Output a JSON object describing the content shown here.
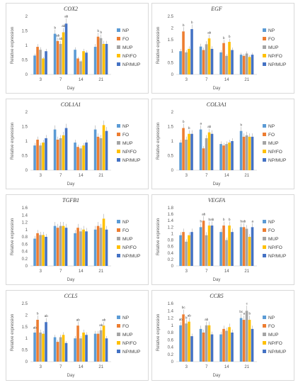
{
  "legend_labels": [
    "NP",
    "FO",
    "MUP",
    "NP/FO",
    "NP/MUP"
  ],
  "series_colors": [
    "#5b9bd5",
    "#ed7d31",
    "#a5a5a5",
    "#ffc000",
    "#4472c4"
  ],
  "chart_data": [
    {
      "type": "bar",
      "title": "COX2",
      "xlabel": "Day",
      "ylabel": "Relative expression",
      "categories": [
        "3",
        "7",
        "14",
        "21"
      ],
      "ylim": [
        0,
        2
      ],
      "yticks": [
        "0",
        "0.5",
        "1",
        "1.5",
        "2"
      ],
      "grid": false,
      "series": [
        {
          "name": "NP",
          "values": [
            0.65,
            1.4,
            0.85,
            0.95
          ]
        },
        {
          "name": "FO",
          "values": [
            0.95,
            1.15,
            0.55,
            1.3
          ]
        },
        {
          "name": "MUP",
          "values": [
            0.85,
            1.05,
            0.45,
            1.25
          ]
        },
        {
          "name": "NP/FO",
          "values": [
            0.55,
            1.45,
            0.8,
            1.05
          ]
        },
        {
          "name": "NP/MUP",
          "values": [
            0.8,
            1.75,
            0.75,
            1.05
          ]
        }
      ],
      "annotations": [
        "ab",
        "ab",
        "b",
        "b",
        "b",
        "ab",
        "ab"
      ]
    },
    {
      "type": "bar",
      "title": "EGF",
      "xlabel": "Day",
      "ylabel": "Relative expression",
      "categories": [
        "3",
        "7",
        "14",
        "21"
      ],
      "ylim": [
        0,
        2.5
      ],
      "yticks": [
        "0",
        "0.5",
        "1",
        "1.5",
        "2",
        "2.5"
      ],
      "grid": false,
      "series": [
        {
          "name": "NP",
          "values": [
            1.0,
            1.2,
            0.95,
            0.85
          ]
        },
        {
          "name": "FO",
          "values": [
            1.85,
            1.05,
            1.35,
            0.8
          ]
        },
        {
          "name": "MUP",
          "values": [
            0.95,
            1.3,
            0.8,
            0.9
          ]
        },
        {
          "name": "NP/FO",
          "values": [
            1.1,
            1.55,
            1.4,
            0.75
          ]
        },
        {
          "name": "NP/MUP",
          "values": [
            1.95,
            1.1,
            1.05,
            0.85
          ]
        }
      ],
      "annotations": [
        "b",
        "b",
        "ab",
        "b",
        "b"
      ]
    },
    {
      "type": "bar",
      "title": "COL1A1",
      "xlabel": "Day",
      "ylabel": "Relative expression",
      "categories": [
        "3",
        "7",
        "14",
        "21"
      ],
      "ylim": [
        0,
        2
      ],
      "yticks": [
        "0",
        "0.5",
        "1",
        "1.5",
        "2"
      ],
      "grid": false,
      "series": [
        {
          "name": "NP",
          "values": [
            0.85,
            1.4,
            0.95,
            1.4
          ]
        },
        {
          "name": "FO",
          "values": [
            1.05,
            1.05,
            0.8,
            1.15
          ]
        },
        {
          "name": "MUP",
          "values": [
            0.85,
            1.1,
            0.75,
            1.1
          ]
        },
        {
          "name": "NP/FO",
          "values": [
            0.95,
            1.2,
            0.85,
            1.55
          ]
        },
        {
          "name": "NP/MUP",
          "values": [
            1.1,
            1.45,
            0.95,
            1.35
          ]
        }
      ],
      "annotations": []
    },
    {
      "type": "bar",
      "title": "COL3A1",
      "xlabel": "Day",
      "ylabel": "Relative expression",
      "categories": [
        "3",
        "7",
        "14",
        "21"
      ],
      "ylim": [
        0,
        2
      ],
      "yticks": [
        "0",
        "0.5",
        "1",
        "1.5",
        "2"
      ],
      "grid": false,
      "series": [
        {
          "name": "NP",
          "values": [
            0.95,
            1.4,
            0.9,
            1.35
          ]
        },
        {
          "name": "FO",
          "values": [
            1.45,
            0.75,
            0.85,
            1.15
          ]
        },
        {
          "name": "MUP",
          "values": [
            1.05,
            1.1,
            0.9,
            1.2
          ]
        },
        {
          "name": "NP/FO",
          "values": [
            1.25,
            1.3,
            0.95,
            1.15
          ]
        },
        {
          "name": "NP/MUP",
          "values": [
            1.25,
            1.25,
            1.0,
            1.15
          ]
        }
      ],
      "annotations": [
        "b",
        "a",
        "b",
        "ab",
        "b"
      ]
    },
    {
      "type": "bar",
      "title": "TGFB1",
      "xlabel": "Day",
      "ylabel": "Relative expression",
      "categories": [
        "3",
        "7",
        "14",
        "21"
      ],
      "ylim": [
        0,
        1.6
      ],
      "yticks": [
        "0",
        "0.2",
        "0.4",
        "0.6",
        "0.8",
        "1",
        "1.2",
        "1.4",
        "1.6"
      ],
      "grid": false,
      "series": [
        {
          "name": "NP",
          "values": [
            0.75,
            1.1,
            0.9,
            1.0
          ]
        },
        {
          "name": "FO",
          "values": [
            0.9,
            1.05,
            1.05,
            1.1
          ]
        },
        {
          "name": "MUP",
          "values": [
            0.85,
            1.1,
            0.95,
            1.05
          ]
        },
        {
          "name": "NP/FO",
          "values": [
            0.85,
            1.1,
            1.0,
            1.3
          ]
        },
        {
          "name": "NP/MUP",
          "values": [
            0.8,
            1.05,
            0.95,
            1.0
          ]
        }
      ],
      "annotations": []
    },
    {
      "type": "bar",
      "title": "VEGFA",
      "xlabel": "Day",
      "ylabel": "Relative expression",
      "categories": [
        "3",
        "7",
        "14",
        "21"
      ],
      "ylim": [
        0,
        1.8
      ],
      "yticks": [
        "0",
        "0.2",
        "0.4",
        "0.6",
        "0.8",
        "1",
        "1.2",
        "1.4",
        "1.6",
        "1.8"
      ],
      "grid": false,
      "series": [
        {
          "name": "NP",
          "values": [
            0.95,
            1.2,
            1.05,
            1.2
          ]
        },
        {
          "name": "FO",
          "values": [
            1.05,
            1.4,
            1.25,
            1.2
          ]
        },
        {
          "name": "MUP",
          "values": [
            0.75,
            0.95,
            0.8,
            1.15
          ]
        },
        {
          "name": "NP/FO",
          "values": [
            0.95,
            1.25,
            1.25,
            0.9
          ]
        },
        {
          "name": "NP/MUP",
          "values": [
            1.05,
            1.25,
            1.05,
            1.2
          ]
        }
      ],
      "annotations": [
        "ab",
        "b",
        "ab",
        "b",
        "b",
        "b",
        "b",
        "ab",
        "a"
      ]
    },
    {
      "type": "bar",
      "title": "CCL5",
      "xlabel": "Day",
      "ylabel": "Relative expression",
      "categories": [
        "3",
        "7",
        "14",
        "21"
      ],
      "ylim": [
        0,
        2.5
      ],
      "yticks": [
        "0",
        "0.5",
        "1",
        "1.5",
        "2",
        "2.5"
      ],
      "grid": false,
      "series": [
        {
          "name": "NP",
          "values": [
            1.25,
            1.05,
            1.0,
            1.2
          ]
        },
        {
          "name": "FO",
          "values": [
            1.8,
            0.85,
            1.55,
            1.2
          ]
        },
        {
          "name": "MUP",
          "values": [
            1.25,
            1.05,
            1.0,
            1.35
          ]
        },
        {
          "name": "NP/FO",
          "values": [
            1.2,
            1.15,
            1.25,
            1.55
          ]
        },
        {
          "name": "NP/MUP",
          "values": [
            1.7,
            0.8,
            1.15,
            1.0
          ]
        }
      ],
      "annotations": [
        "b",
        "ab",
        "ab",
        "ab",
        "ab",
        "ab"
      ]
    },
    {
      "type": "bar",
      "title": "CCR5",
      "xlabel": "Day",
      "ylabel": "Relative expression",
      "categories": [
        "3",
        "7",
        "14",
        "21"
      ],
      "ylim": [
        0,
        1.6
      ],
      "yticks": [
        "0",
        "0.2",
        "0.4",
        "0.6",
        "0.8",
        "1",
        "1.2",
        "1.4",
        "1.6"
      ],
      "grid": false,
      "series": [
        {
          "name": "NP",
          "values": [
            1.0,
            0.9,
            0.75,
            1.2
          ]
        },
        {
          "name": "FO",
          "values": [
            1.3,
            0.8,
            0.9,
            1.15
          ]
        },
        {
          "name": "MUP",
          "values": [
            1.05,
            1.0,
            0.85,
            1.4
          ]
        },
        {
          "name": "NP/FO",
          "values": [
            1.1,
            1.0,
            0.95,
            1.15
          ]
        },
        {
          "name": "NP/MUP",
          "values": [
            0.7,
            0.75,
            0.8,
            0.9
          ]
        }
      ],
      "annotations": [
        "c",
        "bc",
        "bc",
        "a",
        "b",
        "ab",
        "b",
        "ab",
        "ab"
      ]
    }
  ]
}
